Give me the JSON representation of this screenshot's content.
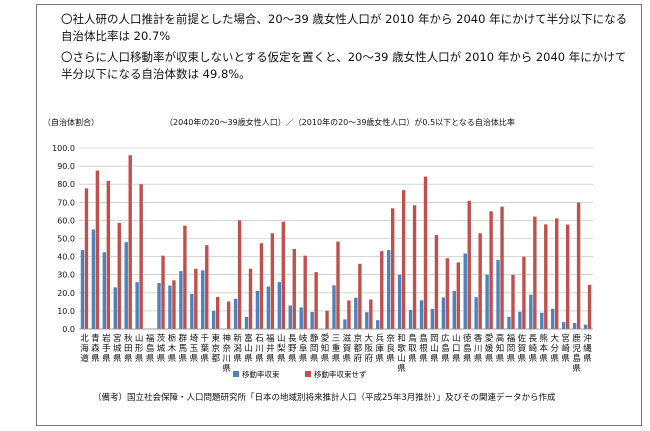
{
  "text": {
    "paragraph1": "〇社人研の人口推計を前提とした場合、20〜39 歳女性人口が 2010 年から 2040 年にかけて半分以下になる自治体比率は 20.7%",
    "paragraph2": "〇さらに人口移動率が収束しないとする仮定を置くと、20〜39 歳女性人口が 2010 年から 2040 年にかけて半分以下になる自治体数は 49.8%。",
    "note": "（備考）国立社会保障・人口問題研究所「日本の地域別将来推計人口（平成25年3月推計）」及びその関連データから作成"
  },
  "chart_data": {
    "type": "bar",
    "title": "（2040年の20〜39歳女性人口）／（2010年の20〜39歳女性人口）が0.5以下となる自治体比率",
    "ylabel": "（自治体割合）",
    "ylim": [
      0,
      100
    ],
    "yticks": [
      "0.0",
      "10.0",
      "20.0",
      "30.0",
      "40.0",
      "50.0",
      "60.0",
      "70.0",
      "80.0",
      "90.0",
      "100.0"
    ],
    "categories": [
      "北海道",
      "青森県",
      "岩手県",
      "宮城県",
      "秋田県",
      "山形県",
      "福島県",
      "茨城県",
      "栃木県",
      "群馬県",
      "埼玉県",
      "千葉県",
      "東京都",
      "神奈川県",
      "新潟県",
      "富山県",
      "石川県",
      "福井県",
      "山梨県",
      "長野県",
      "岐阜県",
      "静岡県",
      "愛知県",
      "三重県",
      "滋賀県",
      "京都府",
      "大阪府",
      "兵庫県",
      "奈良県",
      "和歌山県",
      "鳥取県",
      "島根県",
      "岡山県",
      "広島県",
      "山口県",
      "徳島県",
      "香川県",
      "愛媛県",
      "高知県",
      "福岡県",
      "佐賀県",
      "長崎県",
      "熊本県",
      "大分県",
      "宮崎県",
      "鹿児島県",
      "沖縄県"
    ],
    "series": [
      {
        "name": "移動率収束",
        "color": "#4f81bd",
        "values": [
          43.6,
          55.0,
          42.4,
          23.0,
          48.0,
          25.9,
          null,
          25.4,
          24.0,
          32.0,
          19.4,
          32.4,
          10.0,
          0.0,
          16.7,
          6.7,
          21.1,
          23.5,
          25.9,
          13.0,
          11.9,
          9.4,
          0.0,
          24.1,
          5.3,
          17.3,
          9.3,
          4.9,
          43.6,
          30.0,
          10.5,
          15.8,
          11.1,
          17.4,
          21.1,
          41.7,
          17.6,
          30.0,
          38.2,
          6.7,
          9.5,
          19.0,
          9.0,
          11.1,
          3.8,
          3.3,
          2.4
        ],
        "labels": [],
        "note": ""
      },
      {
        "name": "移動率収束せず",
        "color": "#c0504d",
        "values": [
          77.7,
          87.5,
          81.8,
          58.6,
          96.0,
          80.0,
          null,
          40.5,
          26.9,
          57.1,
          33.3,
          46.3,
          17.7,
          15.2,
          60.0,
          33.3,
          47.4,
          52.9,
          59.3,
          44.2,
          40.5,
          31.4,
          10.1,
          48.3,
          15.8,
          36.0,
          16.3,
          43.0,
          66.7,
          76.7,
          68.4,
          84.2,
          51.9,
          39.1,
          36.8,
          70.8,
          52.9,
          65.0,
          67.6,
          30.0,
          40.0,
          62.1,
          57.8,
          61.1,
          57.7,
          69.8,
          24.4
        ]
      }
    ],
    "legend_position": "bottom",
    "grid": true
  }
}
